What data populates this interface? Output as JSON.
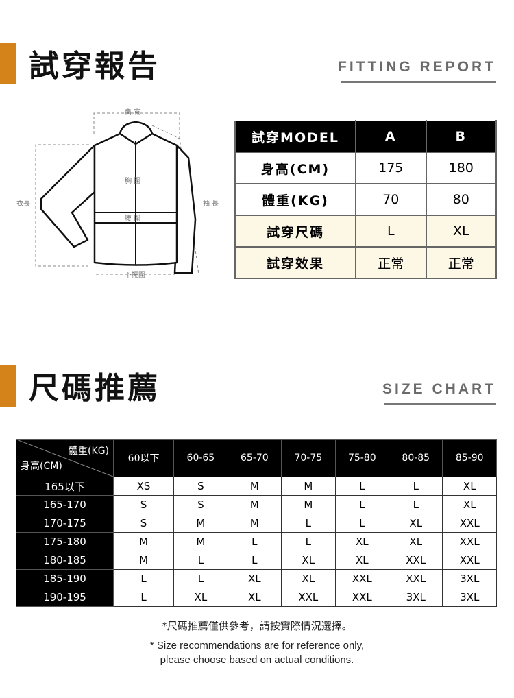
{
  "fitting": {
    "title": "試穿報告",
    "subtitle": "FITTING REPORT",
    "diagram_labels": {
      "shoulder": "肩 寬",
      "chest": "胸 圍",
      "waist": "腰 圍",
      "hem": "下擺圍",
      "length": "衣長",
      "sleeve": "袖 長"
    },
    "headers": [
      "試穿MODEL",
      "A",
      "B"
    ],
    "rows": [
      {
        "label": "身高(CM)",
        "a": "175",
        "b": "180"
      },
      {
        "label": "體重(KG)",
        "a": "70",
        "b": "80"
      },
      {
        "label": "試穿尺碼",
        "a": "L",
        "b": "XL"
      },
      {
        "label": "試穿效果",
        "a": "正常",
        "b": "正常"
      }
    ]
  },
  "size": {
    "title": "尺碼推薦",
    "subtitle": "SIZE CHART",
    "corner_weight": "體重(KG)",
    "corner_height": "身高(CM)",
    "weights": [
      "60以下",
      "60-65",
      "65-70",
      "70-75",
      "75-80",
      "80-85",
      "85-90"
    ],
    "rows": [
      {
        "h": "165以下",
        "v": [
          "XS",
          "S",
          "M",
          "M",
          "L",
          "L",
          "XL"
        ]
      },
      {
        "h": "165-170",
        "v": [
          "S",
          "S",
          "M",
          "M",
          "L",
          "L",
          "XL"
        ]
      },
      {
        "h": "170-175",
        "v": [
          "S",
          "M",
          "M",
          "L",
          "L",
          "XL",
          "XXL"
        ]
      },
      {
        "h": "175-180",
        "v": [
          "M",
          "M",
          "L",
          "L",
          "XL",
          "XL",
          "XXL"
        ]
      },
      {
        "h": "180-185",
        "v": [
          "M",
          "L",
          "L",
          "XL",
          "XL",
          "XXL",
          "XXL"
        ]
      },
      {
        "h": "185-190",
        "v": [
          "L",
          "L",
          "XL",
          "XL",
          "XXL",
          "XXL",
          "3XL"
        ]
      },
      {
        "h": "190-195",
        "v": [
          "L",
          "XL",
          "XL",
          "XXL",
          "XXL",
          "3XL",
          "3XL"
        ]
      }
    ],
    "note_zh": "*尺碼推薦僅供參考，請按實際情況選擇。",
    "note_en_1": "* Size recommendations are for reference only,",
    "note_en_2": "please choose based on actual conditions."
  },
  "colors": {
    "accent": "#d4821a",
    "highlight_row": "#fdf8e6"
  }
}
